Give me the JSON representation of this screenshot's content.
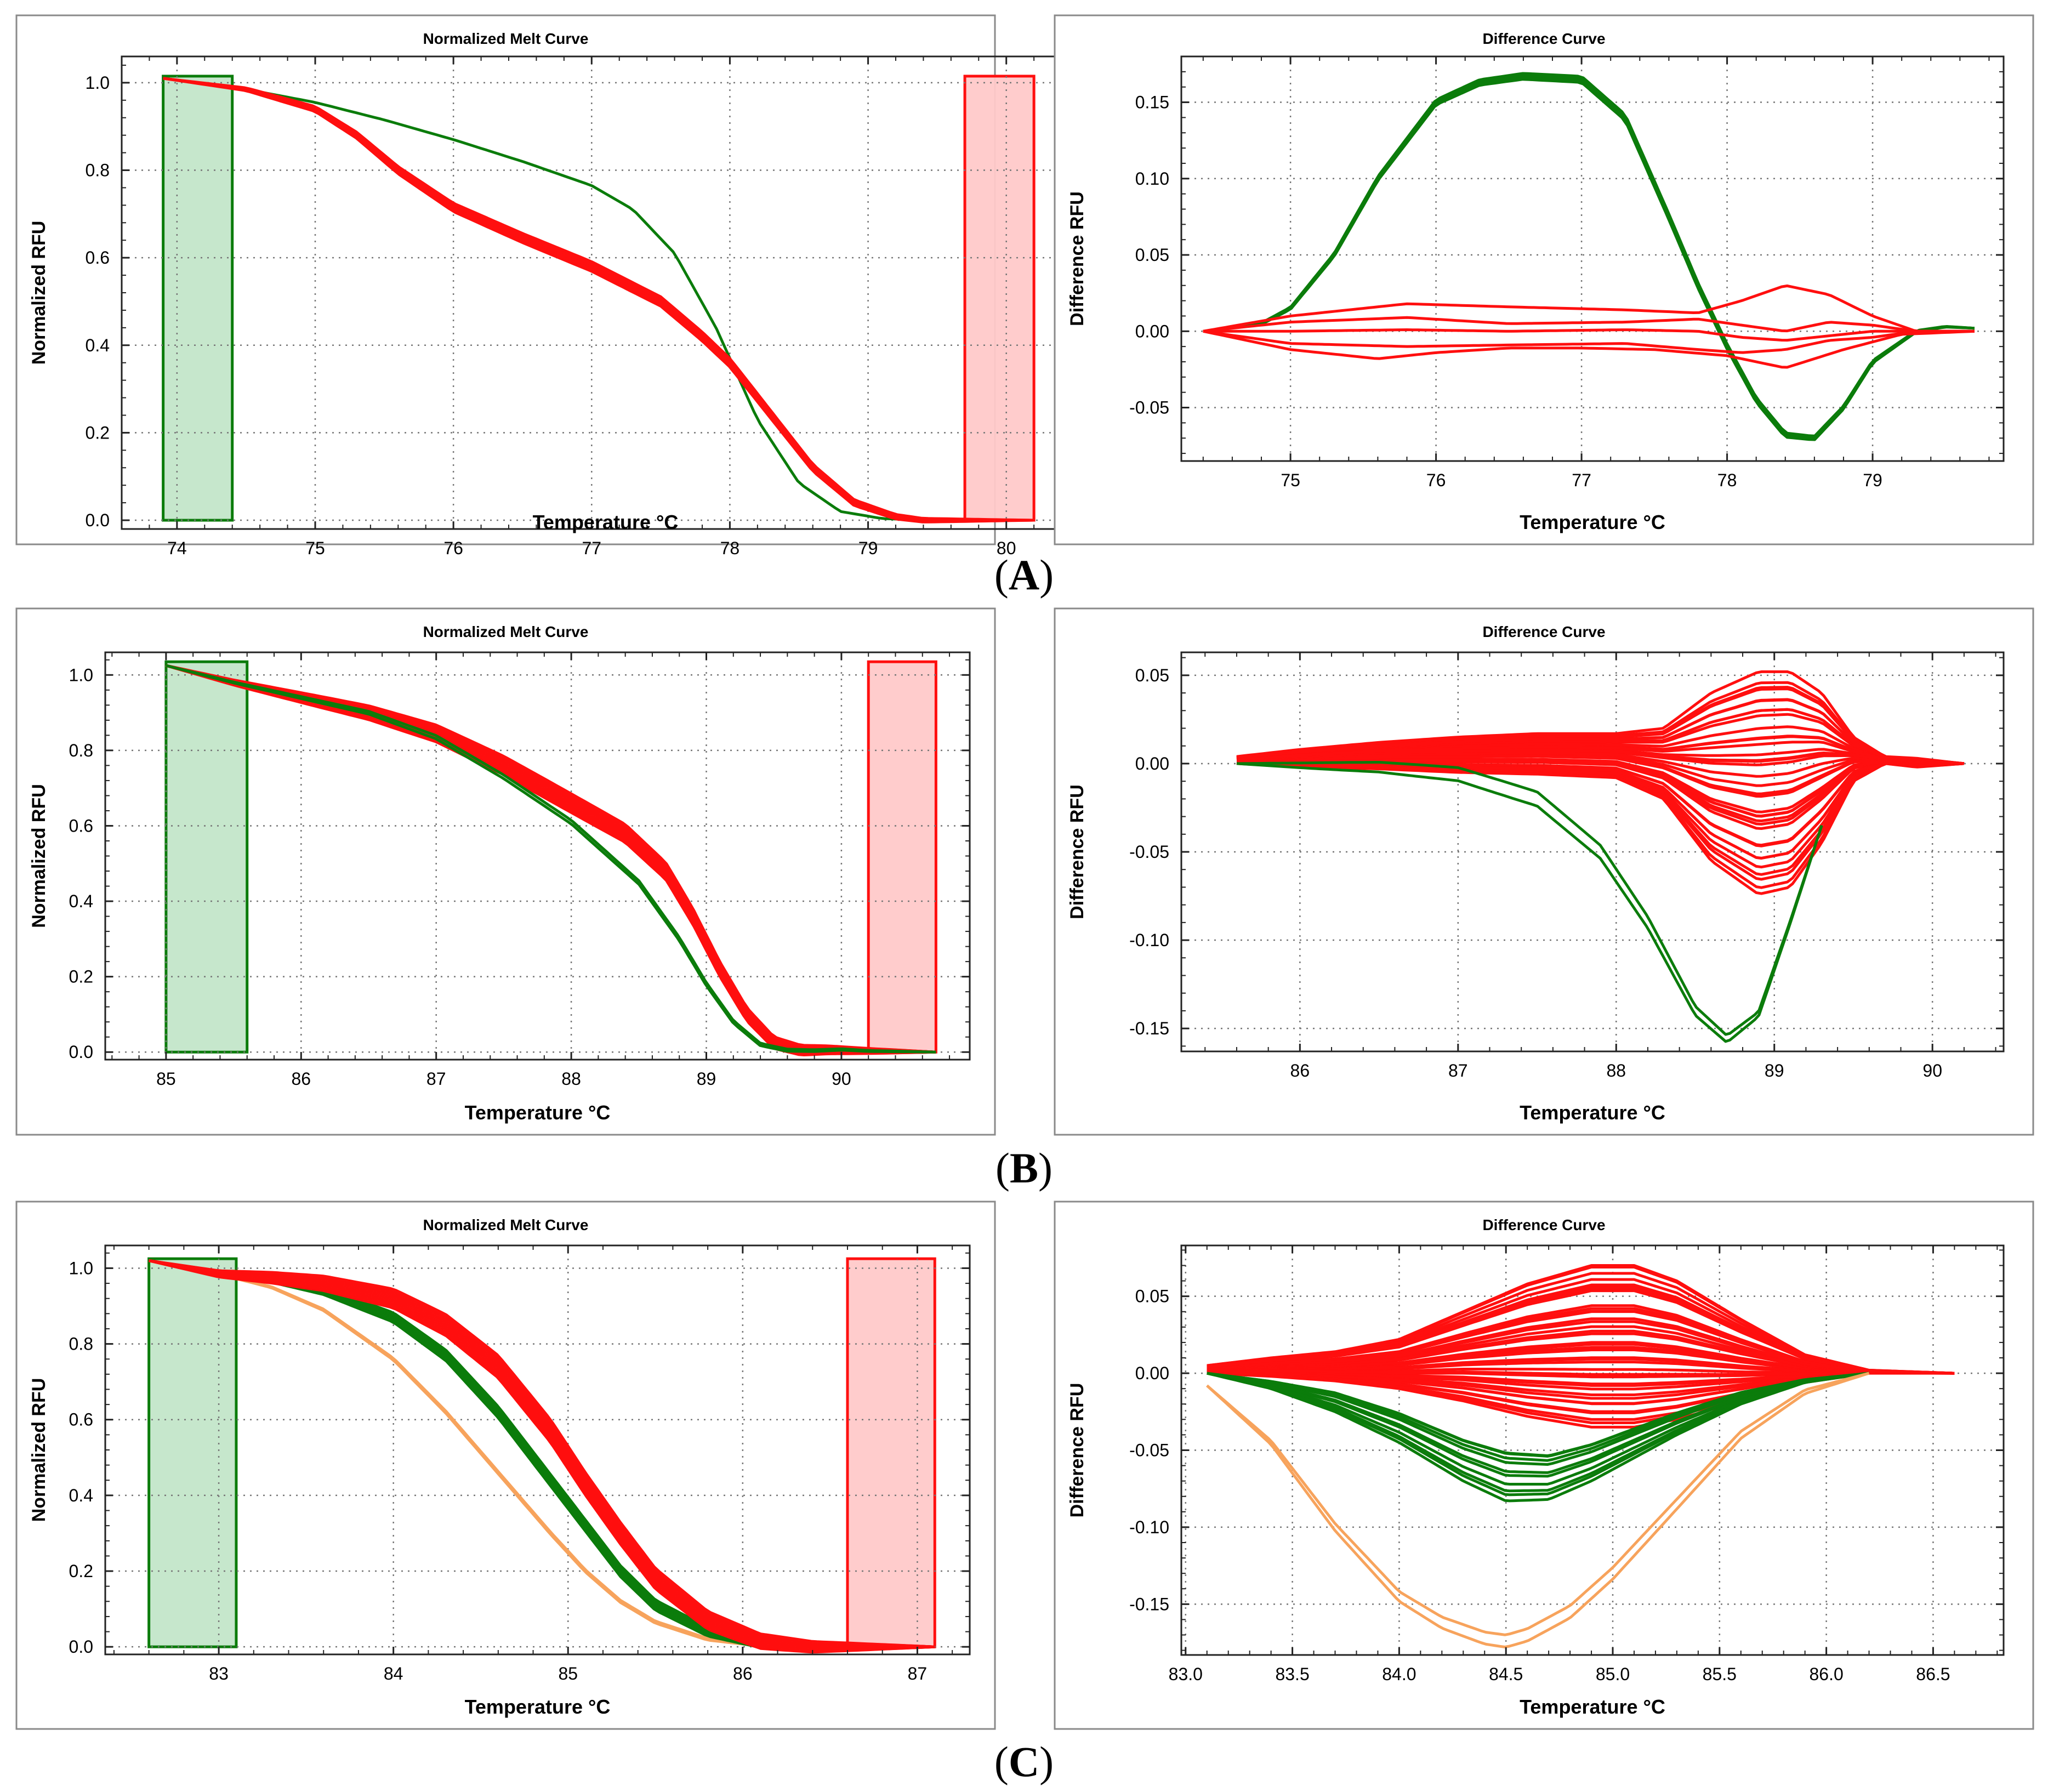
{
  "colors": {
    "green": "#0b7c0b",
    "red": "#ff0f0f",
    "orange": "#f7a35c",
    "green_band": "#c3e6c9",
    "red_band": "#ffc9c9",
    "grid": "#777777",
    "frame": "#8a8a8a"
  },
  "panels": [
    "A",
    "B",
    "C"
  ],
  "chart_data": [
    {
      "id": "A-melt",
      "type": "line",
      "panel": "A",
      "title": "Normalized Melt Curve",
      "xlabel": "Temperature  °C",
      "ylabel": "Normalized RFU",
      "xlim": [
        73.6,
        80.6
      ],
      "ylim": [
        -0.02,
        1.06
      ],
      "xticks": [
        74,
        75,
        76,
        77,
        78,
        79,
        80
      ],
      "yticks": [
        0.0,
        0.2,
        0.4,
        0.6,
        0.8,
        1.0
      ],
      "xtick_labels": [
        "74",
        "75",
        "76",
        "77",
        "78",
        "79",
        "80"
      ],
      "ytick_labels": [
        "0.0",
        "0.2",
        "0.4",
        "0.6",
        "0.8",
        "1.0"
      ],
      "grid": true,
      "regions": [
        {
          "name": "pre-melt",
          "x": [
            73.9,
            74.4
          ],
          "y": [
            0.0,
            1.015
          ],
          "color": "green"
        },
        {
          "name": "post-melt",
          "x": [
            79.7,
            80.2
          ],
          "y": [
            0.0,
            1.015
          ],
          "color": "red"
        }
      ],
      "series": [
        {
          "name": "green group",
          "color": "green",
          "count": 1,
          "x": [
            73.9,
            74.5,
            75.0,
            75.5,
            76.0,
            76.5,
            77.0,
            77.3,
            77.6,
            77.9,
            78.2,
            78.5,
            78.8,
            79.1,
            79.4,
            80.2
          ],
          "y": [
            1.01,
            0.985,
            0.955,
            0.915,
            0.87,
            0.82,
            0.765,
            0.71,
            0.61,
            0.44,
            0.23,
            0.085,
            0.02,
            0.004,
            0.0,
            0.0
          ],
          "spread": 0.004
        },
        {
          "name": "red group",
          "color": "red",
          "count": 5,
          "x": [
            73.9,
            74.5,
            75.0,
            75.3,
            75.6,
            76.0,
            76.5,
            77.0,
            77.5,
            77.8,
            78.0,
            78.3,
            78.6,
            78.9,
            79.2,
            79.4,
            80.2
          ],
          "y": [
            1.01,
            0.985,
            0.94,
            0.88,
            0.8,
            0.715,
            0.645,
            0.58,
            0.5,
            0.42,
            0.36,
            0.24,
            0.12,
            0.04,
            0.008,
            0.0,
            0.0
          ],
          "spread": 0.022
        }
      ]
    },
    {
      "id": "A-diff",
      "type": "line",
      "panel": "A",
      "title": "Difference Curve",
      "xlabel": "Temperature  °C",
      "ylabel": "Difference RFU",
      "xlim": [
        74.25,
        79.9
      ],
      "ylim": [
        -0.085,
        0.18
      ],
      "xticks": [
        75,
        76,
        77,
        78,
        79
      ],
      "yticks": [
        -0.05,
        0.0,
        0.05,
        0.1,
        0.15
      ],
      "xtick_labels": [
        "75",
        "76",
        "77",
        "78",
        "79"
      ],
      "ytick_labels": [
        "-0.05",
        "0.00",
        "0.05",
        "0.10",
        "0.15"
      ],
      "grid": true,
      "series": [
        {
          "name": "green group",
          "color": "green",
          "count": 4,
          "x": [
            74.4,
            74.8,
            75.0,
            75.3,
            75.6,
            76.0,
            76.3,
            76.6,
            77.0,
            77.3,
            77.6,
            77.8,
            78.0,
            78.2,
            78.4,
            78.6,
            78.8,
            79.0,
            79.3,
            79.5,
            79.7
          ],
          "y": [
            0.0,
            0.005,
            0.015,
            0.05,
            0.1,
            0.15,
            0.163,
            0.167,
            0.165,
            0.14,
            0.075,
            0.03,
            -0.01,
            -0.045,
            -0.068,
            -0.07,
            -0.05,
            -0.02,
            0.0,
            0.003,
            0.002
          ],
          "spread": 0.004
        },
        {
          "name": "red curve 1",
          "color": "red",
          "count": 1,
          "x": [
            74.4,
            75.0,
            75.8,
            76.5,
            77.3,
            77.8,
            78.1,
            78.4,
            78.7,
            79.0,
            79.3,
            79.7
          ],
          "y": [
            0.0,
            0.01,
            0.018,
            0.016,
            0.014,
            0.012,
            0.02,
            0.03,
            0.024,
            0.01,
            0.0,
            0.0
          ]
        },
        {
          "name": "red curve 2",
          "color": "red",
          "count": 1,
          "x": [
            74.4,
            75.0,
            75.8,
            76.5,
            77.3,
            77.8,
            78.1,
            78.4,
            78.7,
            79.0,
            79.3,
            79.7
          ],
          "y": [
            0.0,
            0.006,
            0.009,
            0.005,
            0.006,
            0.008,
            0.004,
            0.0,
            0.006,
            0.004,
            0.0,
            0.0
          ]
        },
        {
          "name": "red curve 3",
          "color": "red",
          "count": 1,
          "x": [
            74.4,
            75.0,
            75.8,
            76.5,
            77.3,
            77.8,
            78.1,
            78.4,
            78.7,
            79.0,
            79.3,
            79.7
          ],
          "y": [
            0.0,
            0.0,
            0.001,
            0.0,
            0.001,
            0.0,
            -0.004,
            -0.006,
            -0.003,
            0.0,
            0.0,
            0.0
          ]
        },
        {
          "name": "red curve 4",
          "color": "red",
          "count": 1,
          "x": [
            74.4,
            75.0,
            75.8,
            76.5,
            77.3,
            77.8,
            78.1,
            78.4,
            78.7,
            79.0,
            79.3,
            79.7
          ],
          "y": [
            0.0,
            -0.008,
            -0.01,
            -0.009,
            -0.008,
            -0.012,
            -0.014,
            -0.012,
            -0.006,
            -0.004,
            0.0,
            0.0
          ]
        },
        {
          "name": "red curve 5",
          "color": "red",
          "count": 1,
          "x": [
            74.4,
            75.0,
            75.6,
            76.0,
            76.5,
            77.0,
            77.5,
            78.0,
            78.4,
            78.8,
            79.2,
            79.7
          ],
          "y": [
            0.0,
            -0.012,
            -0.018,
            -0.014,
            -0.011,
            -0.011,
            -0.012,
            -0.016,
            -0.024,
            -0.012,
            -0.002,
            0.0
          ]
        }
      ]
    },
    {
      "id": "B-melt",
      "type": "line",
      "panel": "B",
      "title": "Normalized Melt Curve",
      "xlabel": "Temperature  °C",
      "ylabel": "Normalized RFU",
      "xlim": [
        84.55,
        90.95
      ],
      "ylim": [
        -0.02,
        1.06
      ],
      "xticks": [
        85,
        86,
        87,
        88,
        89,
        90
      ],
      "yticks": [
        0.0,
        0.2,
        0.4,
        0.6,
        0.8,
        1.0
      ],
      "xtick_labels": [
        "85",
        "86",
        "87",
        "88",
        "89",
        "90"
      ],
      "ytick_labels": [
        "0.0",
        "0.2",
        "0.4",
        "0.6",
        "0.8",
        "1.0"
      ],
      "grid": true,
      "regions": [
        {
          "name": "pre-melt",
          "x": [
            85.0,
            85.6
          ],
          "y": [
            0.0,
            1.035
          ],
          "color": "green"
        },
        {
          "name": "post-melt",
          "x": [
            90.2,
            90.7
          ],
          "y": [
            0.0,
            1.035
          ],
          "color": "red"
        }
      ],
      "series": [
        {
          "name": "red group",
          "color": "red",
          "count": 32,
          "x": [
            85.0,
            85.5,
            86.0,
            86.5,
            87.0,
            87.5,
            88.0,
            88.4,
            88.7,
            88.9,
            89.1,
            89.3,
            89.5,
            89.7,
            89.9,
            90.2,
            90.7
          ],
          "y": [
            1.025,
            0.98,
            0.94,
            0.9,
            0.845,
            0.76,
            0.66,
            0.58,
            0.48,
            0.36,
            0.22,
            0.1,
            0.025,
            0.005,
            0.006,
            0.003,
            0.0
          ],
          "spread": 0.05
        },
        {
          "name": "green group",
          "color": "green",
          "count": 2,
          "x": [
            85.0,
            85.5,
            86.0,
            86.5,
            87.0,
            87.5,
            88.0,
            88.5,
            88.8,
            89.0,
            89.2,
            89.4,
            89.6,
            89.8,
            90.0,
            90.2,
            90.7
          ],
          "y": [
            1.025,
            0.98,
            0.94,
            0.9,
            0.835,
            0.73,
            0.61,
            0.45,
            0.3,
            0.18,
            0.08,
            0.02,
            0.005,
            0.004,
            0.007,
            0.003,
            0.0
          ],
          "spread": 0.01
        }
      ]
    },
    {
      "id": "B-diff",
      "type": "line",
      "panel": "B",
      "title": "Difference Curve",
      "xlabel": "Temperature  °C",
      "ylabel": "Difference RFU",
      "xlim": [
        85.25,
        90.45
      ],
      "ylim": [
        -0.163,
        0.063
      ],
      "xticks": [
        86,
        87,
        88,
        89,
        90
      ],
      "yticks": [
        -0.15,
        -0.1,
        -0.05,
        0.0,
        0.05
      ],
      "xtick_labels": [
        "86",
        "87",
        "88",
        "89",
        "90"
      ],
      "ytick_labels": [
        "-0.15",
        "-0.10",
        "-0.05",
        "0.00",
        "0.05"
      ],
      "grid": true,
      "series": [
        {
          "name": "red group",
          "color": "red",
          "count": 36,
          "x": [
            85.6,
            86.0,
            86.5,
            87.0,
            87.5,
            88.0,
            88.3,
            88.6,
            88.9,
            89.1,
            89.3,
            89.5,
            89.7,
            89.9,
            90.2
          ],
          "lo": [
            0.0,
            -0.002,
            -0.003,
            -0.005,
            -0.006,
            -0.008,
            -0.02,
            -0.055,
            -0.074,
            -0.07,
            -0.045,
            -0.01,
            0.0,
            -0.002,
            0.0
          ],
          "hi": [
            0.004,
            0.008,
            0.012,
            0.015,
            0.017,
            0.017,
            0.02,
            0.04,
            0.052,
            0.052,
            0.04,
            0.015,
            0.004,
            0.003,
            0.0
          ]
        },
        {
          "name": "green group",
          "color": "green",
          "count": 2,
          "x": [
            85.6,
            86.0,
            86.5,
            87.0,
            87.5,
            87.9,
            88.2,
            88.5,
            88.7,
            88.9,
            89.1,
            89.3
          ],
          "y": [
            0.0,
            -0.001,
            -0.002,
            -0.006,
            -0.02,
            -0.05,
            -0.09,
            -0.14,
            -0.156,
            -0.142,
            -0.09,
            -0.035
          ],
          "spread": 0.008
        }
      ]
    },
    {
      "id": "C-melt",
      "type": "line",
      "panel": "C",
      "title": "Normalized Melt Curve",
      "xlabel": "Temperature  °C",
      "ylabel": "Normalized RFU",
      "xlim": [
        82.35,
        87.3
      ],
      "ylim": [
        -0.02,
        1.06
      ],
      "xticks": [
        83,
        84,
        85,
        86,
        87
      ],
      "yticks": [
        0.0,
        0.2,
        0.4,
        0.6,
        0.8,
        1.0
      ],
      "xtick_labels": [
        "83",
        "84",
        "85",
        "86",
        "87"
      ],
      "ytick_labels": [
        "0.0",
        "0.2",
        "0.4",
        "0.6",
        "0.8",
        "1.0"
      ],
      "grid": true,
      "regions": [
        {
          "name": "pre-melt",
          "x": [
            82.6,
            83.1
          ],
          "y": [
            0.0,
            1.025
          ],
          "color": "green"
        },
        {
          "name": "post-melt",
          "x": [
            86.6,
            87.1
          ],
          "y": [
            0.0,
            1.025
          ],
          "color": "red"
        }
      ],
      "series": [
        {
          "name": "orange group",
          "color": "orange",
          "count": 2,
          "x": [
            82.6,
            83.0,
            83.3,
            83.6,
            84.0,
            84.3,
            84.6,
            84.9,
            85.1,
            85.3,
            85.5,
            85.8,
            86.1,
            86.4,
            87.1
          ],
          "y": [
            1.02,
            0.985,
            0.95,
            0.89,
            0.76,
            0.62,
            0.46,
            0.3,
            0.2,
            0.12,
            0.065,
            0.02,
            0.004,
            0.0,
            0.0
          ],
          "spread": 0.006
        },
        {
          "name": "green group",
          "color": "green",
          "count": 8,
          "x": [
            82.6,
            83.0,
            83.3,
            83.6,
            84.0,
            84.3,
            84.6,
            84.9,
            85.1,
            85.3,
            85.5,
            85.8,
            86.1,
            86.4,
            87.1
          ],
          "y": [
            1.02,
            0.985,
            0.97,
            0.94,
            0.87,
            0.77,
            0.62,
            0.44,
            0.32,
            0.2,
            0.11,
            0.04,
            0.008,
            0.0,
            0.0
          ],
          "spread": 0.03
        },
        {
          "name": "red group",
          "color": "red",
          "count": 30,
          "x": [
            82.6,
            83.0,
            83.3,
            83.6,
            84.0,
            84.3,
            84.6,
            84.9,
            85.1,
            85.3,
            85.5,
            85.8,
            86.1,
            86.4,
            87.1
          ],
          "y": [
            1.02,
            0.985,
            0.975,
            0.96,
            0.92,
            0.85,
            0.74,
            0.57,
            0.43,
            0.3,
            0.18,
            0.07,
            0.015,
            0.0,
            0.0
          ],
          "spread": 0.06
        }
      ]
    },
    {
      "id": "C-diff",
      "type": "line",
      "panel": "C",
      "title": "Difference Curve",
      "xlabel": "Temperature  °C",
      "ylabel": "Difference RFU",
      "xlim": [
        82.98,
        86.83
      ],
      "ylim": [
        -0.183,
        0.083
      ],
      "xticks": [
        83.0,
        83.5,
        84.0,
        84.5,
        85.0,
        85.5,
        86.0,
        86.5
      ],
      "yticks": [
        -0.15,
        -0.1,
        -0.05,
        0.0,
        0.05
      ],
      "xtick_labels": [
        "83.0",
        "83.5",
        "84.0",
        "84.5",
        "85.0",
        "85.5",
        "86.0",
        "86.5"
      ],
      "ytick_labels": [
        "-0.15",
        "-0.10",
        "-0.05",
        "0.00",
        "0.05"
      ],
      "grid": true,
      "series": [
        {
          "name": "red group",
          "color": "red",
          "count": 40,
          "x": [
            83.1,
            83.4,
            83.7,
            84.0,
            84.3,
            84.6,
            84.9,
            85.1,
            85.3,
            85.6,
            85.9,
            86.2,
            86.6
          ],
          "lo": [
            0.0,
            -0.002,
            -0.005,
            -0.01,
            -0.018,
            -0.028,
            -0.035,
            -0.035,
            -0.03,
            -0.018,
            -0.006,
            0.0,
            0.0
          ],
          "hi": [
            0.005,
            0.01,
            0.014,
            0.022,
            0.04,
            0.058,
            0.07,
            0.07,
            0.06,
            0.035,
            0.012,
            0.002,
            0.0
          ]
        },
        {
          "name": "green group",
          "color": "green",
          "count": 10,
          "x": [
            83.1,
            83.4,
            83.7,
            84.0,
            84.3,
            84.5,
            84.7,
            84.9,
            85.1,
            85.3,
            85.6,
            85.9,
            86.2
          ],
          "lo": [
            0.0,
            -0.01,
            -0.025,
            -0.045,
            -0.07,
            -0.083,
            -0.082,
            -0.07,
            -0.055,
            -0.04,
            -0.02,
            -0.006,
            0.0
          ],
          "hi": [
            0.0,
            -0.005,
            -0.012,
            -0.025,
            -0.042,
            -0.05,
            -0.052,
            -0.045,
            -0.035,
            -0.025,
            -0.012,
            -0.004,
            0.0
          ]
        },
        {
          "name": "orange group",
          "color": "orange",
          "count": 2,
          "x": [
            83.1,
            83.4,
            83.7,
            84.0,
            84.2,
            84.4,
            84.5,
            84.6,
            84.8,
            85.0,
            85.3,
            85.6,
            85.9,
            86.2
          ],
          "y": [
            -0.008,
            -0.045,
            -0.1,
            -0.145,
            -0.162,
            -0.172,
            -0.174,
            -0.17,
            -0.155,
            -0.13,
            -0.085,
            -0.04,
            -0.012,
            0.0
          ],
          "spread": 0.008
        }
      ]
    }
  ]
}
